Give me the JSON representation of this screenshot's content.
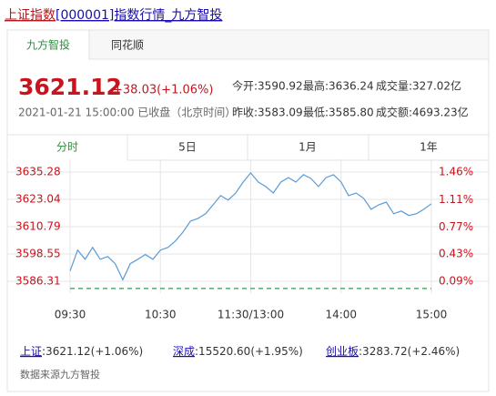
{
  "header": {
    "title_prefix": "上证指数",
    "title_rest": "[000001]指数行情_九方智投"
  },
  "source_tabs": [
    "九方智投",
    "同花顺"
  ],
  "quote": {
    "price": "3621.12",
    "change": "+38.03(+1.06%)",
    "time": "2021-01-21 15:00:00 已收盘（北京时间）",
    "stats": [
      [
        "今开:3590.92",
        "最高:3636.24",
        "成交量:327.02亿"
      ],
      [
        "昨收:3583.09",
        "最低:3585.80",
        "成交额:4693.23亿"
      ]
    ]
  },
  "period_tabs": [
    "分时",
    "5日",
    "1月",
    "1年"
  ],
  "chart_data": {
    "type": "line",
    "color": "#5b9bd5",
    "x": [
      0,
      5,
      10,
      15,
      20,
      25,
      30,
      35,
      40,
      45,
      50,
      55,
      60,
      65,
      70,
      75,
      80,
      85,
      90,
      95,
      100,
      105,
      110,
      115,
      120,
      125,
      130,
      135,
      140,
      145,
      150,
      155,
      160,
      165,
      170,
      175,
      180,
      185,
      190,
      195,
      200,
      205,
      210,
      215,
      220,
      225,
      230,
      235,
      240
    ],
    "values": [
      3590.9,
      3600.3,
      3596.2,
      3601.5,
      3596.2,
      3597.4,
      3594.2,
      3587.0,
      3594.2,
      3596.2,
      3598.3,
      3596.2,
      3600.3,
      3601.5,
      3604.4,
      3608.4,
      3613.3,
      3614.5,
      3616.6,
      3620.6,
      3624.7,
      3622.7,
      3625.9,
      3630.8,
      3634.9,
      3630.8,
      3628.8,
      3625.9,
      3630.8,
      3632.8,
      3630.8,
      3634.1,
      3632.4,
      3628.8,
      3632.8,
      3634.1,
      3630.8,
      3624.7,
      3625.9,
      3623.5,
      3618.6,
      3620.6,
      3621.8,
      3616.6,
      3617.8,
      3615.8,
      3616.6,
      3618.6,
      3621.1
    ],
    "baseline": 3583.09,
    "baseline_color": "#2e9e4f",
    "xlim": [
      0,
      240
    ],
    "xticks": [
      {
        "value": 0,
        "label": "09:30"
      },
      {
        "value": 60,
        "label": "10:30"
      },
      {
        "value": 120,
        "label": "11:30/13:00"
      },
      {
        "value": 180,
        "label": "14:00"
      },
      {
        "value": 240,
        "label": "15:00"
      }
    ],
    "ylim": [
      3581,
      3641
    ],
    "yticks": [
      3635.28,
      3623.04,
      3610.79,
      3598.55,
      3586.31
    ],
    "y2lim": [
      -0.06,
      1.62
    ],
    "y2ticks": [
      {
        "value": 1.46,
        "label": "1.46%"
      },
      {
        "value": 1.11,
        "label": "1.11%"
      },
      {
        "value": 0.77,
        "label": "0.77%"
      },
      {
        "value": 0.43,
        "label": "0.43%"
      },
      {
        "value": 0.09,
        "label": "0.09%"
      }
    ],
    "grid": true
  },
  "footer": {
    "indices": [
      {
        "name": "上证",
        "value": ":3621.12(+1.06%)"
      },
      {
        "name": "深成",
        "value": ":15520.60(+1.95%)"
      },
      {
        "name": "创业板",
        "value": ":3283.72(+2.46%)"
      }
    ],
    "source": "数据来源九方智投"
  }
}
